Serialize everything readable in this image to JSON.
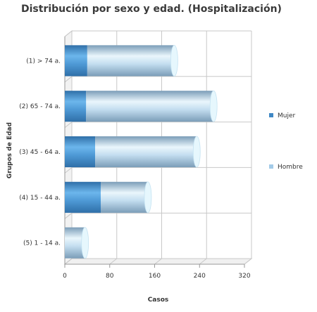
{
  "colors": {
    "mujer": "#3f88c5",
    "hombre": "#a3cbe8",
    "grid": "#c8c8c8",
    "axis": "#999999",
    "text": "#333333"
  },
  "chart_data": {
    "type": "bar",
    "orientation": "horizontal",
    "stacked": true,
    "style": "3d-cylinder",
    "title": "Distribución por sexo y edad. (Hospitalización)",
    "xlabel": "Casos",
    "ylabel": "Grupos de Edad",
    "categories": [
      "(1) > 74 a.",
      "(2) 65 - 74 a.",
      "(3) 45 - 64 a.",
      "(4) 15 - 44 a.",
      "(5) 1 - 14 a."
    ],
    "series": [
      {
        "name": "Mujer",
        "values": [
          40,
          38,
          54,
          64,
          0
        ]
      },
      {
        "name": "Hombre",
        "values": [
          155,
          227,
          181,
          84,
          36
        ]
      }
    ],
    "xlim": [
      0,
      320
    ],
    "xticks": [
      "0",
      "80",
      "160",
      "240",
      "320"
    ],
    "grid": true,
    "legend": "right"
  }
}
